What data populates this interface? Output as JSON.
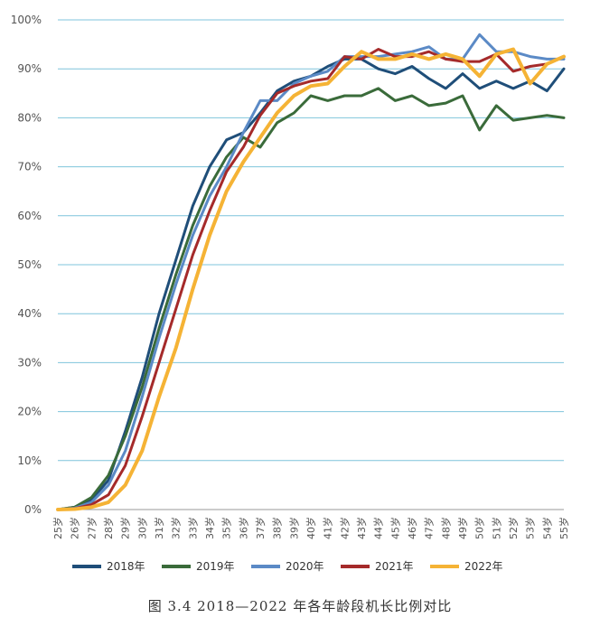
{
  "caption": "图 3.4 2018—2022 年各年龄段机长比例对比",
  "chart_data": {
    "type": "line",
    "title": "",
    "xlabel": "",
    "ylabel": "",
    "ylim": [
      0,
      100
    ],
    "y_ticks": [
      "0%",
      "10%",
      "20%",
      "30%",
      "40%",
      "50%",
      "60%",
      "70%",
      "80%",
      "90%",
      "100%"
    ],
    "grid": "horizontal",
    "legend_position": "bottom",
    "x": [
      "25岁",
      "26岁",
      "27岁",
      "28岁",
      "29岁",
      "30岁",
      "31岁",
      "32岁",
      "33岁",
      "34岁",
      "35岁",
      "36岁",
      "37岁",
      "38岁",
      "39岁",
      "40岁",
      "41岁",
      "42岁",
      "43岁",
      "44岁",
      "45岁",
      "46岁",
      "47岁",
      "48岁",
      "49岁",
      "50岁",
      "51岁",
      "52岁",
      "53岁",
      "54岁",
      "55岁"
    ],
    "series": [
      {
        "name": "2018年",
        "color": "#1f4e79",
        "values": [
          0,
          0.5,
          2,
          6,
          16,
          27,
          40,
          51,
          62,
          70,
          75.5,
          77,
          81,
          85.5,
          87.5,
          88.5,
          90.5,
          92,
          92,
          90,
          89,
          90.5,
          88,
          86,
          89,
          86,
          87.5,
          86,
          87.5,
          85.5,
          90
        ]
      },
      {
        "name": "2019年",
        "color": "#3a6b3a",
        "values": [
          0,
          0.5,
          2.5,
          7,
          15,
          25,
          37,
          48,
          58,
          66,
          72,
          76,
          74,
          79,
          81,
          84.5,
          83.5,
          84.5,
          84.5,
          86,
          83.5,
          84.5,
          82.5,
          83,
          84.5,
          77.5,
          82.5,
          79.5,
          80,
          80.5,
          80
        ]
      },
      {
        "name": "2020年",
        "color": "#5b8ac6",
        "values": [
          0,
          0.3,
          1.5,
          5,
          12,
          23,
          35,
          46,
          56,
          64,
          70,
          77,
          83.5,
          83.5,
          87,
          88.5,
          89.5,
          92.5,
          92.5,
          92.5,
          93,
          93.5,
          94.5,
          92,
          92,
          97,
          93.5,
          93.5,
          92.5,
          92,
          92
        ]
      },
      {
        "name": "2021年",
        "color": "#a52a2a",
        "values": [
          0,
          0.2,
          1,
          3,
          9,
          19,
          30,
          41,
          52,
          61,
          69,
          74,
          80.5,
          85,
          86.5,
          87.5,
          88,
          92.5,
          92,
          94,
          92.5,
          92.5,
          93.5,
          92,
          91.5,
          91.5,
          93,
          89.5,
          90.5,
          91,
          92.5
        ]
      },
      {
        "name": "2022年",
        "color": "#f5b335",
        "values": [
          0,
          0.1,
          0.5,
          1.5,
          5,
          12,
          23,
          33,
          45,
          56,
          65,
          71,
          76,
          81,
          84.5,
          86.5,
          87,
          90.5,
          93.5,
          92,
          92,
          93,
          92,
          93,
          92,
          88.5,
          93,
          94,
          87,
          91,
          92.5
        ]
      }
    ]
  }
}
